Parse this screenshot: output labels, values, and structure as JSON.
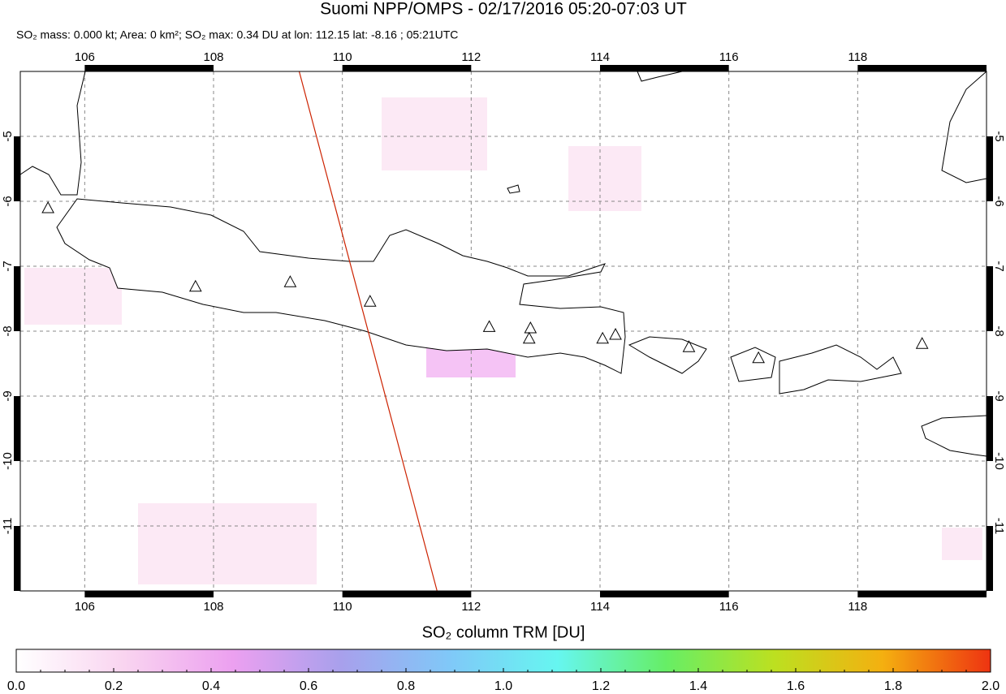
{
  "chart_data": {
    "type": "map",
    "title": "Suomi NPP/OMPS - 02/17/2016 05:20-07:03 UT",
    "subtitle": "SO₂ mass: 0.000 kt; Area: 0 km²; SO₂ max: 0.34 DU at lon: 112.15 lat: -8.16 ; 05:21UTC",
    "xlim": [
      105,
      120
    ],
    "ylim": [
      -12,
      -4
    ],
    "xticks": [
      106,
      108,
      110,
      112,
      114,
      116,
      118
    ],
    "yticks": [
      -5,
      -6,
      -7,
      -8,
      -9,
      -10,
      -11
    ],
    "grid": true,
    "track": {
      "lon": [
        109.33,
        111.47
      ],
      "lat": [
        -4,
        -12
      ],
      "color": "#cc2200"
    },
    "volcanoes": {
      "lon": [
        105.43,
        107.72,
        109.19,
        110.43,
        112.28,
        112.92,
        112.9,
        114.04,
        114.24,
        115.38,
        116.46,
        119.0
      ],
      "lat": [
        -6.1,
        -7.31,
        -7.24,
        -7.54,
        -7.93,
        -7.95,
        -8.11,
        -8.11,
        -8.05,
        -8.24,
        -8.41,
        -8.19
      ]
    },
    "colorbar": {
      "label": "SO₂ column TRM [DU]",
      "lim": [
        0,
        2
      ],
      "ticks": [
        {
          "value": 0,
          "label": "0.0"
        },
        0.2,
        0.4,
        0.6,
        0.8,
        {
          "value": 1,
          "label": "1.0"
        },
        1.2,
        1.4,
        1.6,
        1.8,
        {
          "value": 2,
          "label": "2.0"
        }
      ],
      "colors": [
        "#ffffff",
        "#f9d4f0",
        "#eca0f0",
        "#a8a0ec",
        "#80c8f8",
        "#66f6f0",
        "#66ee66",
        "#bce020",
        "#f4b010",
        "#ee3311"
      ]
    }
  }
}
